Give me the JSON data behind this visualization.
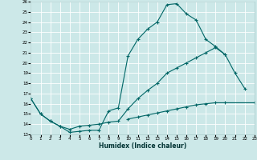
{
  "title": "",
  "xlabel": "Humidex (Indice chaleur)",
  "ylabel": "",
  "background_color": "#cce8e8",
  "grid_color": "#ffffff",
  "line_color": "#006666",
  "xmin": 0,
  "xmax": 23,
  "ymin": 13,
  "ymax": 26,
  "line1_y": [
    16.5,
    15.0,
    14.3,
    13.8,
    13.2,
    13.3,
    13.4,
    13.4,
    15.3,
    15.6,
    20.7,
    22.3,
    23.3,
    24.0,
    25.7,
    25.8,
    24.8,
    24.2,
    22.3,
    21.6,
    20.8,
    19.0,
    17.5,
    null
  ],
  "line2_y": [
    16.5,
    15.0,
    14.3,
    13.8,
    13.5,
    13.8,
    13.9,
    14.0,
    14.2,
    14.3,
    15.5,
    16.5,
    17.3,
    18.0,
    19.0,
    19.5,
    20.0,
    20.5,
    21.0,
    21.5,
    20.8,
    null,
    null,
    null
  ],
  "line3_x": [
    10,
    11,
    12,
    13,
    14,
    15,
    16,
    17,
    18,
    19,
    20,
    23
  ],
  "line3_y": [
    14.5,
    14.7,
    14.9,
    15.1,
    15.3,
    15.5,
    15.7,
    15.9,
    16.0,
    16.1,
    16.1,
    16.1
  ]
}
